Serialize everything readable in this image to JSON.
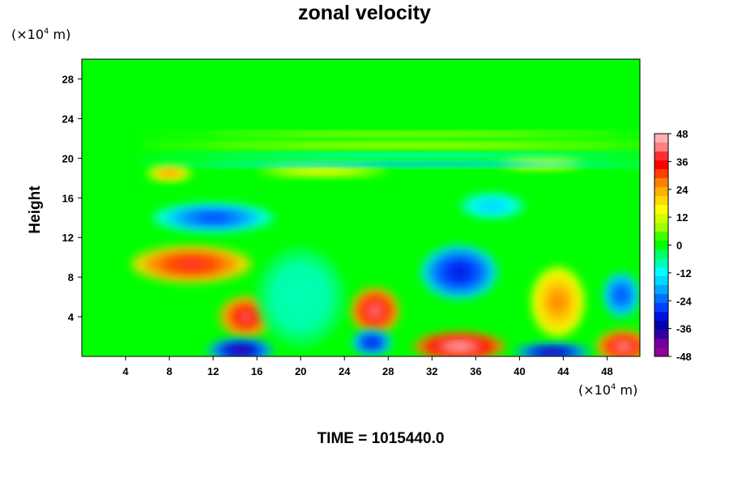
{
  "title": "zonal velocity",
  "y_unit": {
    "prefix": "(×10",
    "exp": "4",
    "suffix": " m)"
  },
  "x_unit": {
    "prefix": "(×10",
    "exp": "4",
    "suffix": " m)"
  },
  "ylabel": "Height",
  "time_label": "TIME = 1015440.0",
  "colors": {
    "background": "#ffffff",
    "axis": "#000000"
  },
  "chart_data": {
    "type": "heatmap",
    "title": "zonal velocity",
    "xlabel": "(×10^4 m)",
    "ylabel": "Height",
    "xlim": [
      0,
      51
    ],
    "ylim": [
      0,
      30
    ],
    "xticks": [
      4,
      8,
      12,
      16,
      20,
      24,
      28,
      32,
      36,
      40,
      44,
      48
    ],
    "yticks": [
      4,
      8,
      12,
      16,
      20,
      24,
      28
    ],
    "colorbar": {
      "ticks": [
        48,
        36,
        24,
        12,
        0,
        -12,
        -24,
        -36,
        -48
      ],
      "range": [
        -48,
        48
      ],
      "levels": [
        {
          "value": 48,
          "color": "#ffb0b0"
        },
        {
          "value": 42,
          "color": "#ff8080"
        },
        {
          "value": 38,
          "color": "#ff3030"
        },
        {
          "value": 34,
          "color": "#ff0000"
        },
        {
          "value": 30,
          "color": "#ff4000"
        },
        {
          "value": 26,
          "color": "#ff8000"
        },
        {
          "value": 22,
          "color": "#ffb000"
        },
        {
          "value": 18,
          "color": "#ffd800"
        },
        {
          "value": 14,
          "color": "#ffff00"
        },
        {
          "value": 10,
          "color": "#d0ff00"
        },
        {
          "value": 6,
          "color": "#a0ff00"
        },
        {
          "value": 2,
          "color": "#40ff00"
        },
        {
          "value": -2,
          "color": "#00ff00"
        },
        {
          "value": -6,
          "color": "#00ff60"
        },
        {
          "value": -10,
          "color": "#00ffb0"
        },
        {
          "value": -14,
          "color": "#00ffff"
        },
        {
          "value": -18,
          "color": "#00d8ff"
        },
        {
          "value": -22,
          "color": "#00a8ff"
        },
        {
          "value": -26,
          "color": "#0070ff"
        },
        {
          "value": -30,
          "color": "#0040ff"
        },
        {
          "value": -34,
          "color": "#0010e0"
        },
        {
          "value": -38,
          "color": "#0000b0"
        },
        {
          "value": -42,
          "color": "#3000a0"
        },
        {
          "value": -46,
          "color": "#7000a0"
        },
        {
          "value": -48,
          "color": "#90009a"
        }
      ]
    },
    "background_value": -2,
    "features": [
      {
        "x": 10,
        "y": 9.3,
        "rx": 5.5,
        "ry": 1.8,
        "value": 36
      },
      {
        "x": 15,
        "y": 4,
        "rx": 2.4,
        "ry": 2.0,
        "value": 40
      },
      {
        "x": 26.8,
        "y": 4.6,
        "rx": 2.2,
        "ry": 2.3,
        "value": 44
      },
      {
        "x": 34.5,
        "y": 1.0,
        "rx": 4.2,
        "ry": 1.4,
        "value": 48
      },
      {
        "x": 49.5,
        "y": 1.0,
        "rx": 2.5,
        "ry": 1.6,
        "value": 46
      },
      {
        "x": 43.5,
        "y": 5.5,
        "rx": 2.4,
        "ry": 3.5,
        "value": 24
      },
      {
        "x": 14.5,
        "y": 0.6,
        "rx": 3.0,
        "ry": 1.1,
        "value": -46
      },
      {
        "x": 26.5,
        "y": 1.4,
        "rx": 1.8,
        "ry": 1.2,
        "value": -38
      },
      {
        "x": 43.0,
        "y": 0.4,
        "rx": 3.5,
        "ry": 0.8,
        "value": -46
      },
      {
        "x": 34.5,
        "y": 8.5,
        "rx": 3.5,
        "ry": 2.7,
        "value": -36
      },
      {
        "x": 49.3,
        "y": 6.2,
        "rx": 1.6,
        "ry": 2.2,
        "value": -32
      },
      {
        "x": 12,
        "y": 14,
        "rx": 5.5,
        "ry": 1.4,
        "value": -30
      },
      {
        "x": 37.5,
        "y": 15.2,
        "rx": 3.0,
        "ry": 1.2,
        "value": -20
      },
      {
        "x": 20,
        "y": 6,
        "rx": 4.0,
        "ry": 5.0,
        "value": -12
      },
      {
        "x": 8,
        "y": 18.5,
        "rx": 2.0,
        "ry": 0.7,
        "value": 24
      },
      {
        "x": 22,
        "y": 18.8,
        "rx": 6.0,
        "ry": 0.6,
        "value": 12
      },
      {
        "x": 42,
        "y": 19.5,
        "rx": 4.0,
        "ry": 0.6,
        "value": 14
      },
      {
        "x": 30,
        "y": 20.3,
        "rx": 25,
        "ry": 0.25,
        "value": -16
      },
      {
        "x": 30,
        "y": 21.3,
        "rx": 25,
        "ry": 0.3,
        "value": 10
      },
      {
        "x": 30,
        "y": 22.4,
        "rx": 25,
        "ry": 0.3,
        "value": 6
      },
      {
        "x": 30,
        "y": 19.4,
        "rx": 25,
        "ry": 0.25,
        "value": -26
      }
    ]
  }
}
